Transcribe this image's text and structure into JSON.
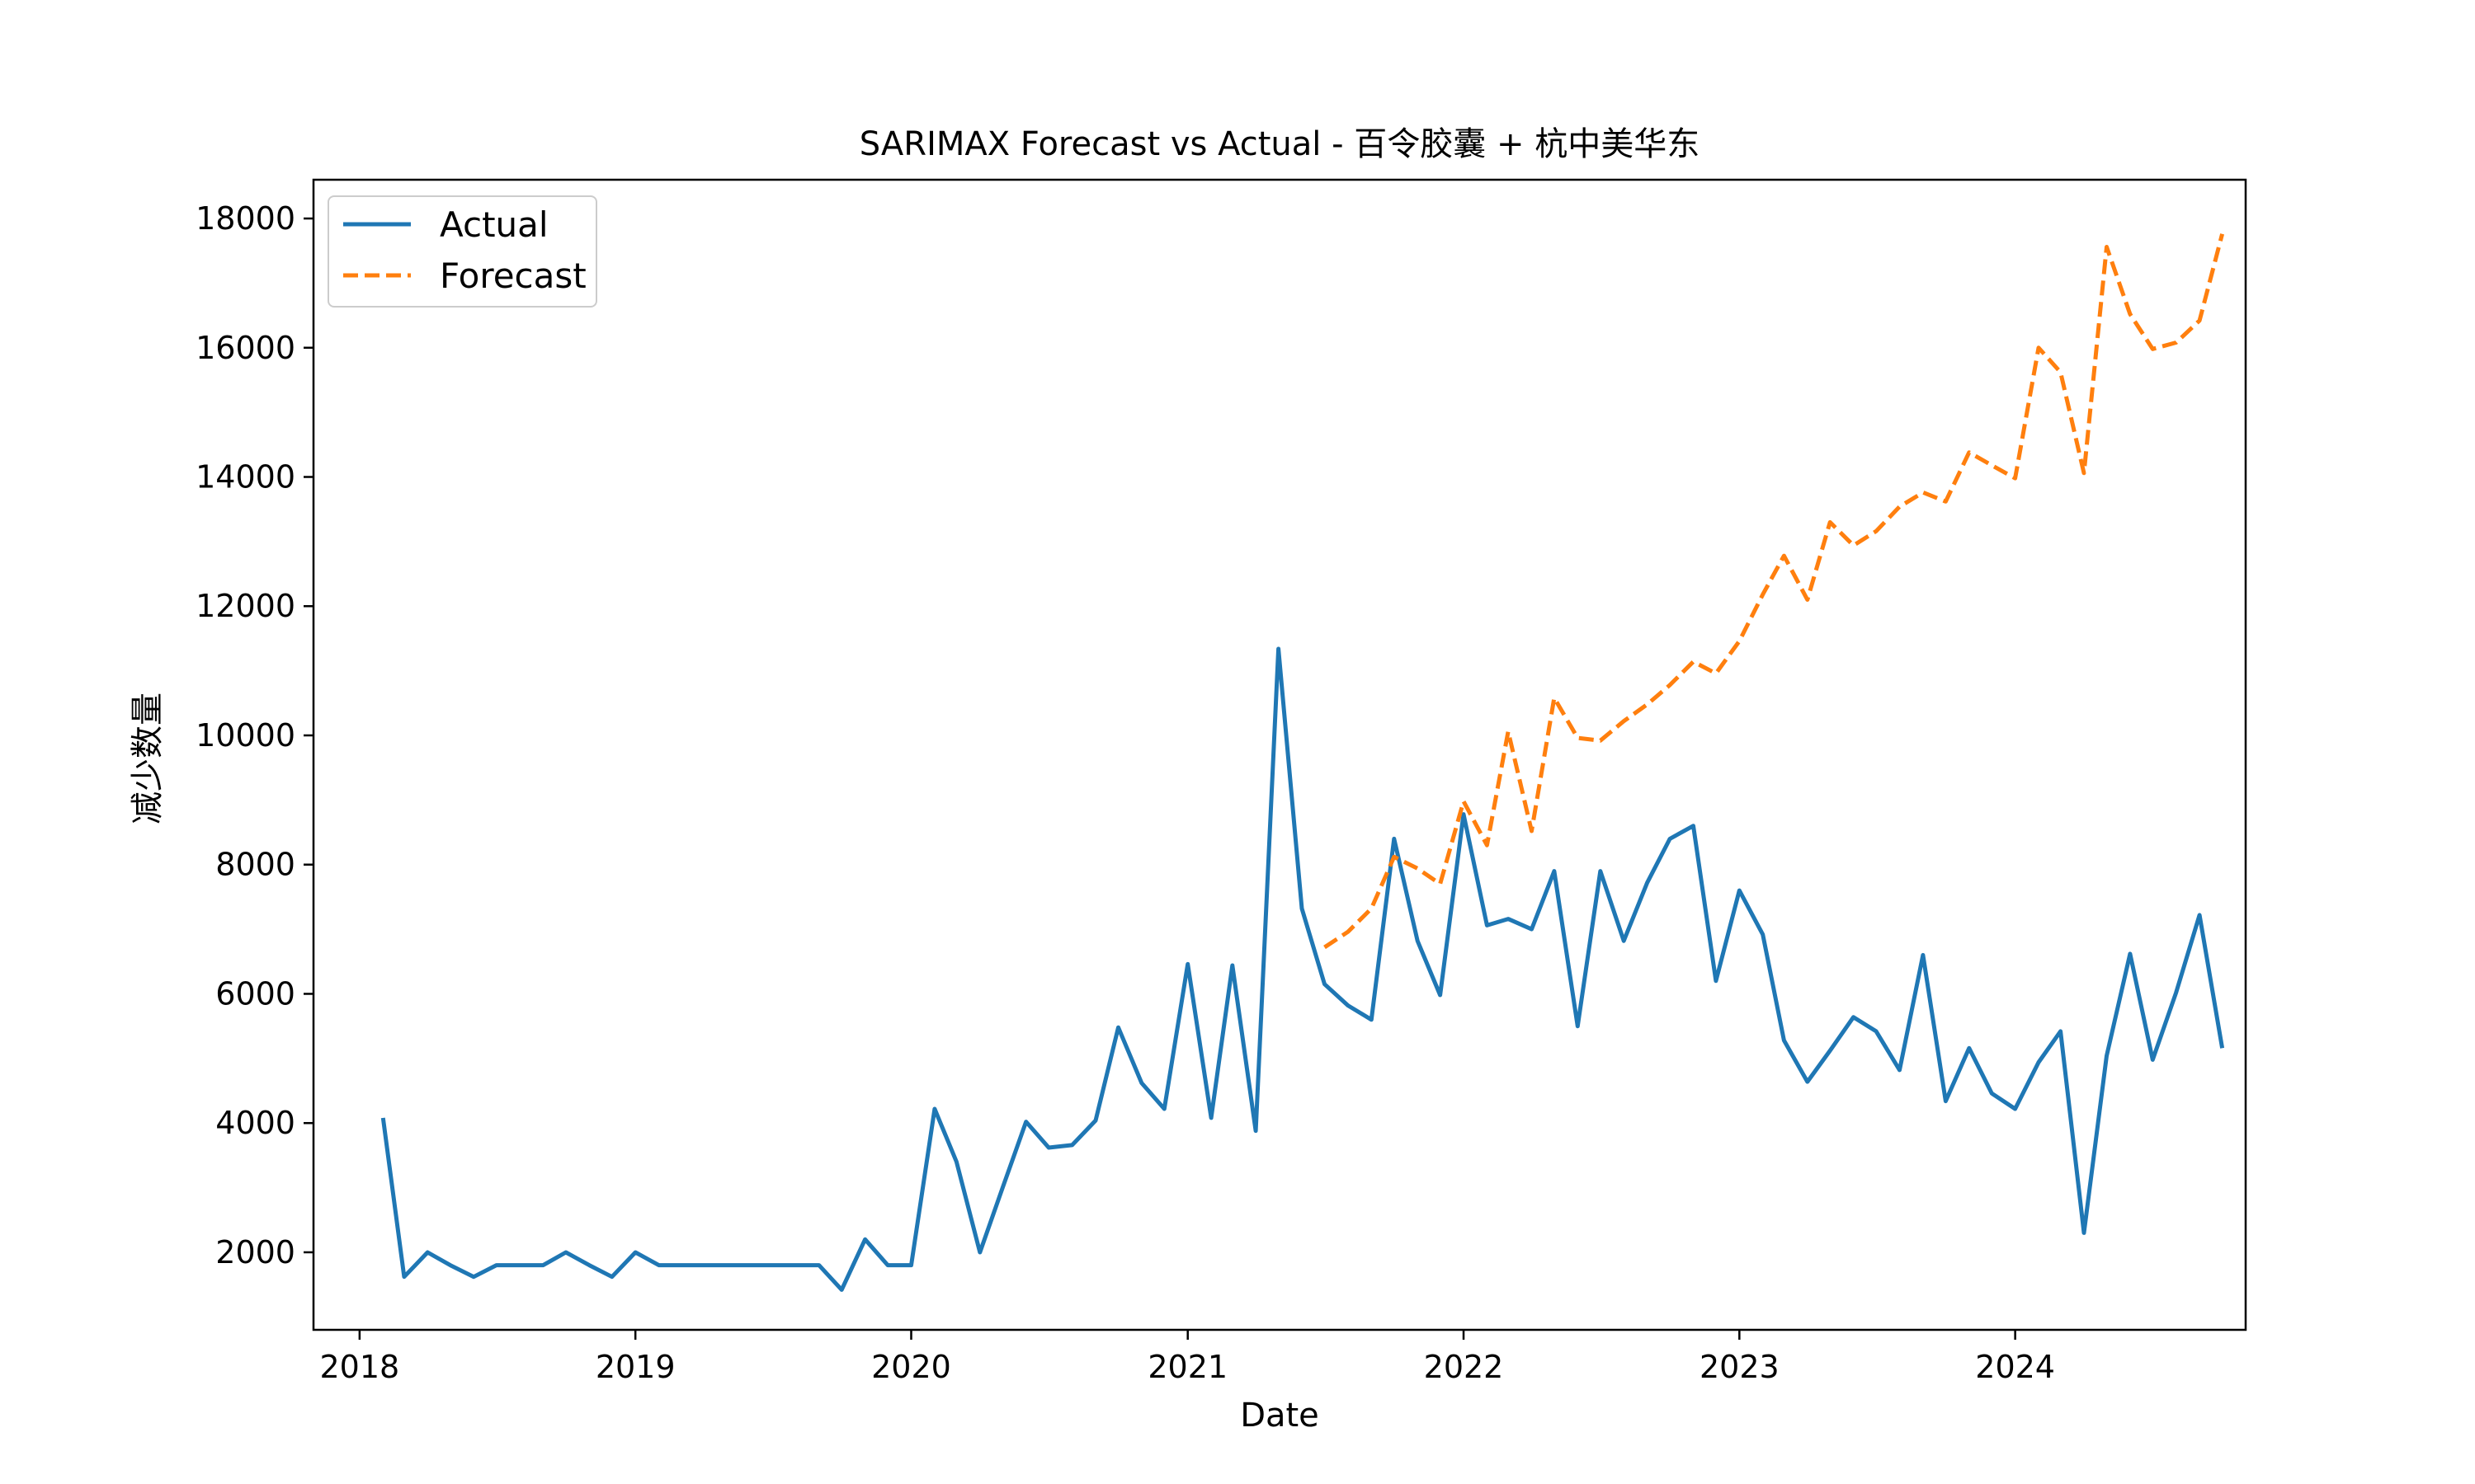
{
  "chart_data": {
    "type": "line",
    "title": "SARIMAX Forecast vs Actual - 百令胶囊 + 杭中美华东",
    "xlabel": "Date",
    "ylabel": "减少数量",
    "x_ticks": [
      "2018",
      "2019",
      "2020",
      "2021",
      "2022",
      "2023",
      "2024"
    ],
    "y_ticks": [
      "2000",
      "4000",
      "6000",
      "8000",
      "10000",
      "12000",
      "14000",
      "16000",
      "18000"
    ],
    "xlim": [
      "2017-11-01",
      "2024-11-01"
    ],
    "ylim": [
      800,
      18600
    ],
    "grid": false,
    "legend_position": "upper-left",
    "series": [
      {
        "name": "Actual",
        "color": "#1f77b4",
        "style": "solid",
        "points": [
          [
            "2018-02-01",
            4080
          ],
          [
            "2018-03-01",
            1620
          ],
          [
            "2018-04-01",
            2000
          ],
          [
            "2018-05-01",
            1800
          ],
          [
            "2018-06-01",
            1620
          ],
          [
            "2018-07-01",
            1800
          ],
          [
            "2018-08-01",
            1800
          ],
          [
            "2018-09-01",
            1800
          ],
          [
            "2018-10-01",
            2000
          ],
          [
            "2018-11-01",
            1800
          ],
          [
            "2018-12-01",
            1620
          ],
          [
            "2019-01-01",
            2000
          ],
          [
            "2019-02-01",
            1800
          ],
          [
            "2019-03-01",
            1800
          ],
          [
            "2019-04-01",
            1800
          ],
          [
            "2019-05-01",
            1800
          ],
          [
            "2019-06-01",
            1800
          ],
          [
            "2019-07-01",
            1800
          ],
          [
            "2019-08-01",
            1800
          ],
          [
            "2019-09-01",
            1800
          ],
          [
            "2019-10-01",
            1420
          ],
          [
            "2019-11-01",
            2200
          ],
          [
            "2019-12-01",
            1800
          ],
          [
            "2020-01-01",
            1800
          ],
          [
            "2020-02-01",
            4220
          ],
          [
            "2020-03-01",
            3400
          ],
          [
            "2020-04-01",
            2000
          ],
          [
            "2020-05-01",
            3000
          ],
          [
            "2020-06-01",
            4020
          ],
          [
            "2020-07-01",
            3620
          ],
          [
            "2020-08-01",
            3660
          ],
          [
            "2020-09-01",
            4040
          ],
          [
            "2020-10-01",
            5480
          ],
          [
            "2020-11-01",
            4620
          ],
          [
            "2020-12-01",
            4220
          ],
          [
            "2021-01-01",
            6460
          ],
          [
            "2021-02-01",
            4080
          ],
          [
            "2021-03-01",
            6440
          ],
          [
            "2021-04-01",
            3880
          ],
          [
            "2021-05-01",
            11340
          ],
          [
            "2021-06-01",
            7320
          ],
          [
            "2021-07-01",
            6150
          ],
          [
            "2021-08-01",
            5820
          ],
          [
            "2021-09-01",
            5600
          ],
          [
            "2021-10-01",
            8400
          ],
          [
            "2021-11-01",
            6820
          ],
          [
            "2021-12-01",
            5980
          ],
          [
            "2022-01-01",
            8780
          ],
          [
            "2022-02-01",
            7060
          ],
          [
            "2022-03-01",
            7160
          ],
          [
            "2022-04-01",
            7000
          ],
          [
            "2022-05-01",
            7900
          ],
          [
            "2022-06-01",
            5500
          ],
          [
            "2022-07-01",
            7900
          ],
          [
            "2022-08-01",
            6820
          ],
          [
            "2022-09-01",
            7720
          ],
          [
            "2022-10-01",
            8400
          ],
          [
            "2022-11-01",
            8600
          ],
          [
            "2022-12-01",
            6200
          ],
          [
            "2023-01-01",
            7600
          ],
          [
            "2023-02-01",
            6920
          ],
          [
            "2023-03-01",
            5280
          ],
          [
            "2023-04-01",
            4640
          ],
          [
            "2023-05-01",
            5120
          ],
          [
            "2023-06-01",
            5640
          ],
          [
            "2023-07-01",
            5420
          ],
          [
            "2023-08-01",
            4820
          ],
          [
            "2023-09-01",
            6600
          ],
          [
            "2023-10-01",
            4340
          ],
          [
            "2023-11-01",
            5160
          ],
          [
            "2023-12-01",
            4460
          ],
          [
            "2024-01-01",
            4220
          ],
          [
            "2024-02-01",
            4940
          ],
          [
            "2024-03-01",
            5420
          ],
          [
            "2024-04-01",
            2300
          ],
          [
            "2024-05-01",
            5040
          ],
          [
            "2024-06-01",
            6620
          ],
          [
            "2024-07-01",
            4980
          ],
          [
            "2024-08-01",
            6020
          ],
          [
            "2024-09-01",
            7220
          ],
          [
            "2024-10-01",
            5160
          ]
        ]
      },
      {
        "name": "Forecast",
        "color": "#ff7f0e",
        "style": "dashed",
        "points": [
          [
            "2021-07-01",
            6720
          ],
          [
            "2021-08-01",
            6960
          ],
          [
            "2021-09-01",
            7320
          ],
          [
            "2021-10-01",
            8120
          ],
          [
            "2021-11-01",
            7940
          ],
          [
            "2021-12-01",
            7700
          ],
          [
            "2022-01-01",
            8980
          ],
          [
            "2022-02-01",
            8300
          ],
          [
            "2022-03-01",
            10060
          ],
          [
            "2022-04-01",
            8520
          ],
          [
            "2022-05-01",
            10580
          ],
          [
            "2022-06-01",
            9960
          ],
          [
            "2022-07-01",
            9920
          ],
          [
            "2022-08-01",
            10220
          ],
          [
            "2022-09-01",
            10480
          ],
          [
            "2022-10-01",
            10780
          ],
          [
            "2022-11-01",
            11140
          ],
          [
            "2022-12-01",
            10960
          ],
          [
            "2023-01-01",
            11460
          ],
          [
            "2023-02-01",
            12180
          ],
          [
            "2023-03-01",
            12780
          ],
          [
            "2023-04-01",
            12100
          ],
          [
            "2023-05-01",
            13300
          ],
          [
            "2023-06-01",
            12940
          ],
          [
            "2023-07-01",
            13160
          ],
          [
            "2023-08-01",
            13540
          ],
          [
            "2023-09-01",
            13760
          ],
          [
            "2023-10-01",
            13620
          ],
          [
            "2023-11-01",
            14380
          ],
          [
            "2023-12-01",
            14180
          ],
          [
            "2024-01-01",
            13980
          ],
          [
            "2024-02-01",
            16000
          ],
          [
            "2024-03-01",
            15620
          ],
          [
            "2024-04-01",
            14060
          ],
          [
            "2024-05-01",
            17560
          ],
          [
            "2024-06-01",
            16520
          ],
          [
            "2024-07-01",
            15980
          ],
          [
            "2024-08-01",
            16080
          ],
          [
            "2024-09-01",
            16420
          ],
          [
            "2024-10-01",
            17760
          ]
        ]
      }
    ]
  }
}
